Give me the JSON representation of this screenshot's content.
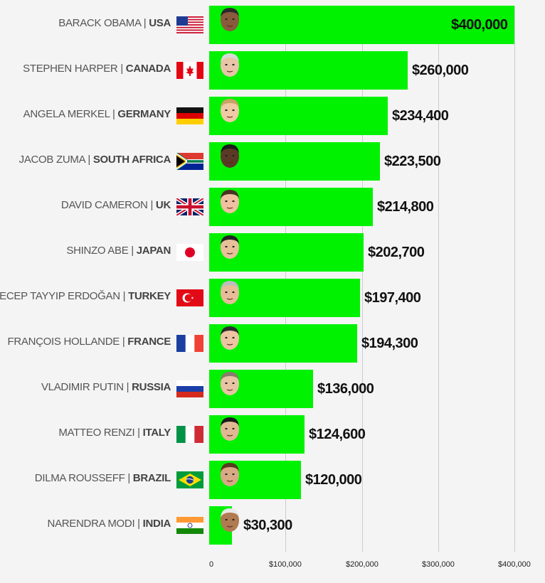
{
  "chart_data": {
    "type": "bar",
    "orientation": "horizontal",
    "title": "",
    "xlabel": "",
    "ylabel": "",
    "xlim": [
      0,
      400000
    ],
    "grid": true,
    "x_ticks": [
      "0",
      "$100,000",
      "$200,000",
      "$300,000",
      "$400,000"
    ],
    "tick_values": [
      0,
      100000,
      200000,
      300000,
      400000
    ],
    "bar_color": "#00f200",
    "rows": [
      {
        "name": "BARACK OBAMA",
        "country": "USA",
        "value": 400000,
        "value_label": "$400,000",
        "flag": "flag-usa"
      },
      {
        "name": "STEPHEN HARPER",
        "country": "CANADA",
        "value": 260000,
        "value_label": "$260,000",
        "flag": "flag-canada"
      },
      {
        "name": "ANGELA MERKEL",
        "country": "GERMANY",
        "value": 234400,
        "value_label": "$234,400",
        "flag": "flag-germany"
      },
      {
        "name": "JACOB ZUMA",
        "country": "SOUTH AFRICA",
        "value": 223500,
        "value_label": "$223,500",
        "flag": "flag-south-africa"
      },
      {
        "name": "DAVID CAMERON",
        "country": "UK",
        "value": 214800,
        "value_label": "$214,800",
        "flag": "flag-uk"
      },
      {
        "name": "SHINZO ABE",
        "country": "JAPAN",
        "value": 202700,
        "value_label": "$202,700",
        "flag": "flag-japan"
      },
      {
        "name": "RECEP TAYYIP ERDOĞAN",
        "country": "TURKEY",
        "value": 197400,
        "value_label": "$197,400",
        "flag": "flag-turkey"
      },
      {
        "name": "FRANÇOIS HOLLANDE",
        "country": "FRANCE",
        "value": 194300,
        "value_label": "$194,300",
        "flag": "flag-france"
      },
      {
        "name": "VLADIMIR PUTIN",
        "country": "RUSSIA",
        "value": 136000,
        "value_label": "$136,000",
        "flag": "flag-russia"
      },
      {
        "name": "MATTEO RENZI",
        "country": "ITALY",
        "value": 124600,
        "value_label": "$124,600",
        "flag": "flag-italy"
      },
      {
        "name": "DILMA ROUSSEFF",
        "country": "BRAZIL",
        "value": 120000,
        "value_label": "$120,000",
        "flag": "flag-brazil"
      },
      {
        "name": "NARENDRA MODI",
        "country": "INDIA",
        "value": 30300,
        "value_label": "$30,300",
        "flag": "flag-india"
      }
    ]
  }
}
